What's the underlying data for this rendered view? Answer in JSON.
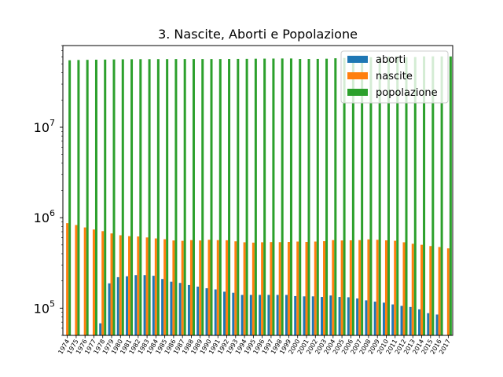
{
  "chart_data": {
    "type": "bar",
    "title": "3. Nascite, Aborti e Popolazione",
    "xlabel": "",
    "ylabel": "",
    "yscale": "log",
    "ylim": [
      50000,
      80000000
    ],
    "yticks": [
      {
        "value": 100000,
        "base": "10",
        "exp": "5"
      },
      {
        "value": 1000000,
        "base": "10",
        "exp": "6"
      },
      {
        "value": 10000000,
        "base": "10",
        "exp": "7"
      }
    ],
    "grid": false,
    "legend_position": "top-right",
    "categories": [
      "1974",
      "1975",
      "1976",
      "1977",
      "1978",
      "1979",
      "1980",
      "1981",
      "1982",
      "1983",
      "1984",
      "1985",
      "1986",
      "1987",
      "1988",
      "1989",
      "1990",
      "1991",
      "1992",
      "1993",
      "1994",
      "1995",
      "1996",
      "1997",
      "1998",
      "1999",
      "2000",
      "2001",
      "2002",
      "2003",
      "2004",
      "2005",
      "2006",
      "2007",
      "2008",
      "2009",
      "2010",
      "2011",
      "2012",
      "2013",
      "2014",
      "2015",
      "2016",
      "2017"
    ],
    "series": [
      {
        "name": "aborti",
        "color": "#1f77b4",
        "values": [
          null,
          null,
          null,
          null,
          68000,
          188000,
          220000,
          225000,
          232000,
          232000,
          228000,
          210000,
          196000,
          190000,
          180000,
          173000,
          166000,
          161000,
          152000,
          148000,
          140000,
          140000,
          140000,
          140000,
          140000,
          140000,
          136000,
          135000,
          135000,
          133000,
          138000,
          133000,
          132000,
          128000,
          122000,
          118000,
          115000,
          110000,
          106000,
          103000,
          97000,
          88000,
          85000,
          null
        ]
      },
      {
        "name": "nascite",
        "color": "#ff7f0e",
        "values": [
          870000,
          830000,
          780000,
          740000,
          710000,
          670000,
          640000,
          625000,
          620000,
          605000,
          590000,
          578000,
          560000,
          555000,
          565000,
          560000,
          570000,
          565000,
          563000,
          548000,
          535000,
          530000,
          535000,
          538000,
          537000,
          540000,
          545000,
          540000,
          545000,
          550000,
          565000,
          560000,
          562000,
          565000,
          576000,
          570000,
          562000,
          556000,
          535000,
          515000,
          502000,
          486000,
          474000,
          458000
        ]
      },
      {
        "name": "popolazione",
        "color": "#2ca02c",
        "values": [
          55000000,
          55400000,
          55600000,
          55800000,
          56000000,
          56200000,
          56400000,
          56500000,
          56600000,
          56600000,
          56700000,
          56700000,
          56800000,
          56800000,
          56800000,
          56800000,
          56800000,
          56800000,
          56900000,
          57000000,
          57100000,
          57300000,
          57400000,
          57500000,
          57600000,
          57600000,
          56900000,
          56900000,
          57000000,
          57300000,
          57900000,
          58400000,
          58700000,
          59100000,
          59600000,
          60000000,
          60300000,
          60600000,
          59400000,
          59700000,
          60700000,
          60800000,
          60700000,
          60600000
        ]
      }
    ]
  }
}
